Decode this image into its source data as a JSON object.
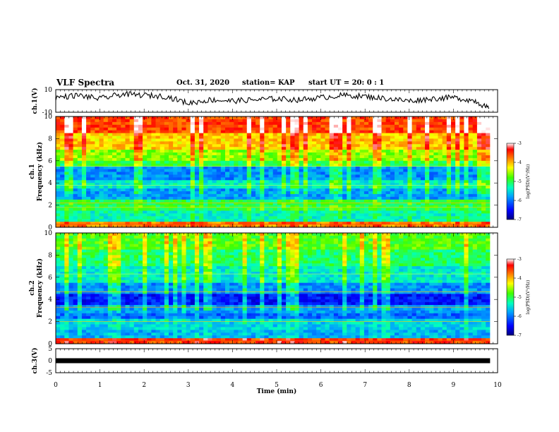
{
  "header": {
    "title": "VLF Spectra",
    "date": "Oct. 31, 2020",
    "station": "station= KAP",
    "start_ut": "start  UT =   20: 0  : 1"
  },
  "colors": {
    "spectrum_low": "#0000b0",
    "spectrum_high": "#e00000",
    "trace": "#000000"
  },
  "chart_data": [
    {
      "type": "line",
      "panel": "ch1-waveform",
      "ylabel": "ch.1(V)",
      "ylim": [
        -10,
        10
      ],
      "yticks": [
        -10,
        10
      ],
      "x_range_min": [
        0,
        9.83
      ],
      "note_values": "noisy trace fluctuating around 0 to +5 V, dropping near -8 V at end",
      "x": [
        0,
        0.5,
        1,
        1.5,
        2,
        2.5,
        3,
        3.5,
        4,
        4.5,
        5,
        5.5,
        6,
        6.5,
        7,
        7.5,
        8,
        8.5,
        9,
        9.5,
        9.8
      ],
      "y": [
        3,
        5,
        2,
        6,
        5,
        4,
        -2,
        1,
        0,
        1,
        2,
        1,
        3,
        5,
        4,
        2,
        0,
        2,
        3,
        0,
        -7
      ]
    },
    {
      "type": "heatmap",
      "panel": "ch1-spectrogram",
      "ylabel_line1": "ch.1",
      "ylabel_line2": "Frequency (kHz)",
      "ylim": [
        0,
        10
      ],
      "yticks": [
        0,
        2,
        4,
        6,
        8,
        10
      ],
      "colorbar": {
        "label": "log(PSD)(V²/Hz)",
        "range": [
          -7,
          -3
        ],
        "ticks": [
          -3,
          -4,
          -5,
          -6,
          -7
        ]
      }
    },
    {
      "type": "heatmap",
      "panel": "ch2-spectrogram",
      "ylabel_line1": "ch.2",
      "ylabel_line2": "Frequency (kHz)",
      "ylim": [
        0,
        10
      ],
      "yticks": [
        0,
        2,
        4,
        6,
        8,
        10
      ],
      "colorbar": {
        "label": "log(PSD)(V²/Hz)",
        "range": [
          -7,
          -3
        ],
        "ticks": [
          -3,
          -4,
          -5,
          -6,
          -7
        ]
      }
    },
    {
      "type": "line",
      "panel": "ch3-waveform",
      "ylabel": "ch.3(V)",
      "ylim": [
        -5,
        5
      ],
      "yticks": [
        5,
        0,
        -5
      ],
      "x": [
        0,
        9.83
      ],
      "y": [
        0,
        0
      ]
    }
  ],
  "xaxis": {
    "label": "Time (min)",
    "range": [
      0,
      10
    ],
    "ticks": [
      "0",
      "1",
      "2",
      "3",
      "4",
      "5",
      "6",
      "7",
      "8",
      "9",
      "10"
    ]
  }
}
